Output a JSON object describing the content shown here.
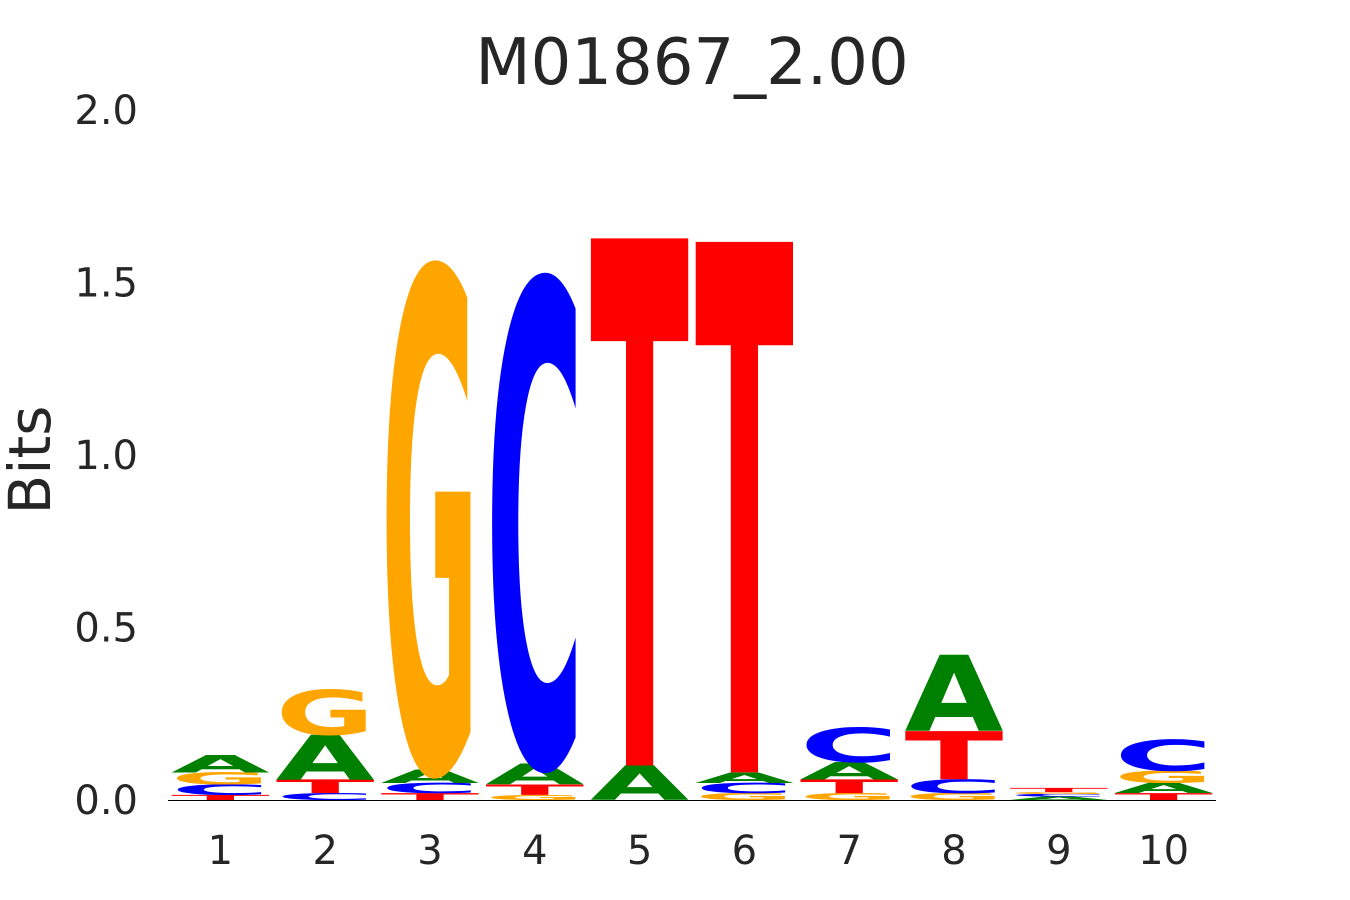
{
  "chart_data": {
    "type": "sequence-logo",
    "title": "M01867_2.00",
    "ylabel": "Bits",
    "xlabel": "",
    "ylim": [
      0,
      2.0
    ],
    "yticks": [
      "0.0",
      "0.5",
      "1.0",
      "1.5",
      "2.0"
    ],
    "positions": [
      "1",
      "2",
      "3",
      "4",
      "5",
      "6",
      "7",
      "8",
      "9",
      "10"
    ],
    "grid": false,
    "colors": {
      "A": "#008000",
      "C": "#0000ff",
      "G": "#ffa500",
      "T": "#ff0000"
    },
    "stacks": [
      [
        {
          "base": "T",
          "bits": 0.015
        },
        {
          "base": "C",
          "bits": 0.03
        },
        {
          "base": "G",
          "bits": 0.035
        },
        {
          "base": "A",
          "bits": 0.05
        }
      ],
      [
        {
          "base": "C",
          "bits": 0.02
        },
        {
          "base": "T",
          "bits": 0.04
        },
        {
          "base": "A",
          "bits": 0.13
        },
        {
          "base": "G",
          "bits": 0.13
        }
      ],
      [
        {
          "base": "T",
          "bits": 0.02
        },
        {
          "base": "C",
          "bits": 0.03
        },
        {
          "base": "A",
          "bits": 0.04
        },
        {
          "base": "G",
          "bits": 1.45
        }
      ],
      [
        {
          "base": "G",
          "bits": 0.015
        },
        {
          "base": "T",
          "bits": 0.03
        },
        {
          "base": "A",
          "bits": 0.06
        },
        {
          "base": "C",
          "bits": 1.4
        }
      ],
      [
        {
          "base": "A",
          "bits": 0.1
        },
        {
          "base": "T",
          "bits": 1.53
        }
      ],
      [
        {
          "base": "G",
          "bits": 0.02
        },
        {
          "base": "C",
          "bits": 0.03
        },
        {
          "base": "A",
          "bits": 0.03
        },
        {
          "base": "T",
          "bits": 1.54
        }
      ],
      [
        {
          "base": "G",
          "bits": 0.02
        },
        {
          "base": "T",
          "bits": 0.04
        },
        {
          "base": "A",
          "bits": 0.05
        },
        {
          "base": "C",
          "bits": 0.1
        }
      ],
      [
        {
          "base": "G",
          "bits": 0.02
        },
        {
          "base": "C",
          "bits": 0.04
        },
        {
          "base": "T",
          "bits": 0.14
        },
        {
          "base": "A",
          "bits": 0.22
        }
      ],
      [
        {
          "base": "A",
          "bits": 0.01
        },
        {
          "base": "C",
          "bits": 0.008
        },
        {
          "base": "G",
          "bits": 0.005
        },
        {
          "base": "T",
          "bits": 0.012
        }
      ],
      [
        {
          "base": "T",
          "bits": 0.02
        },
        {
          "base": "A",
          "bits": 0.03
        },
        {
          "base": "G",
          "bits": 0.035
        },
        {
          "base": "C",
          "bits": 0.09
        }
      ]
    ]
  }
}
